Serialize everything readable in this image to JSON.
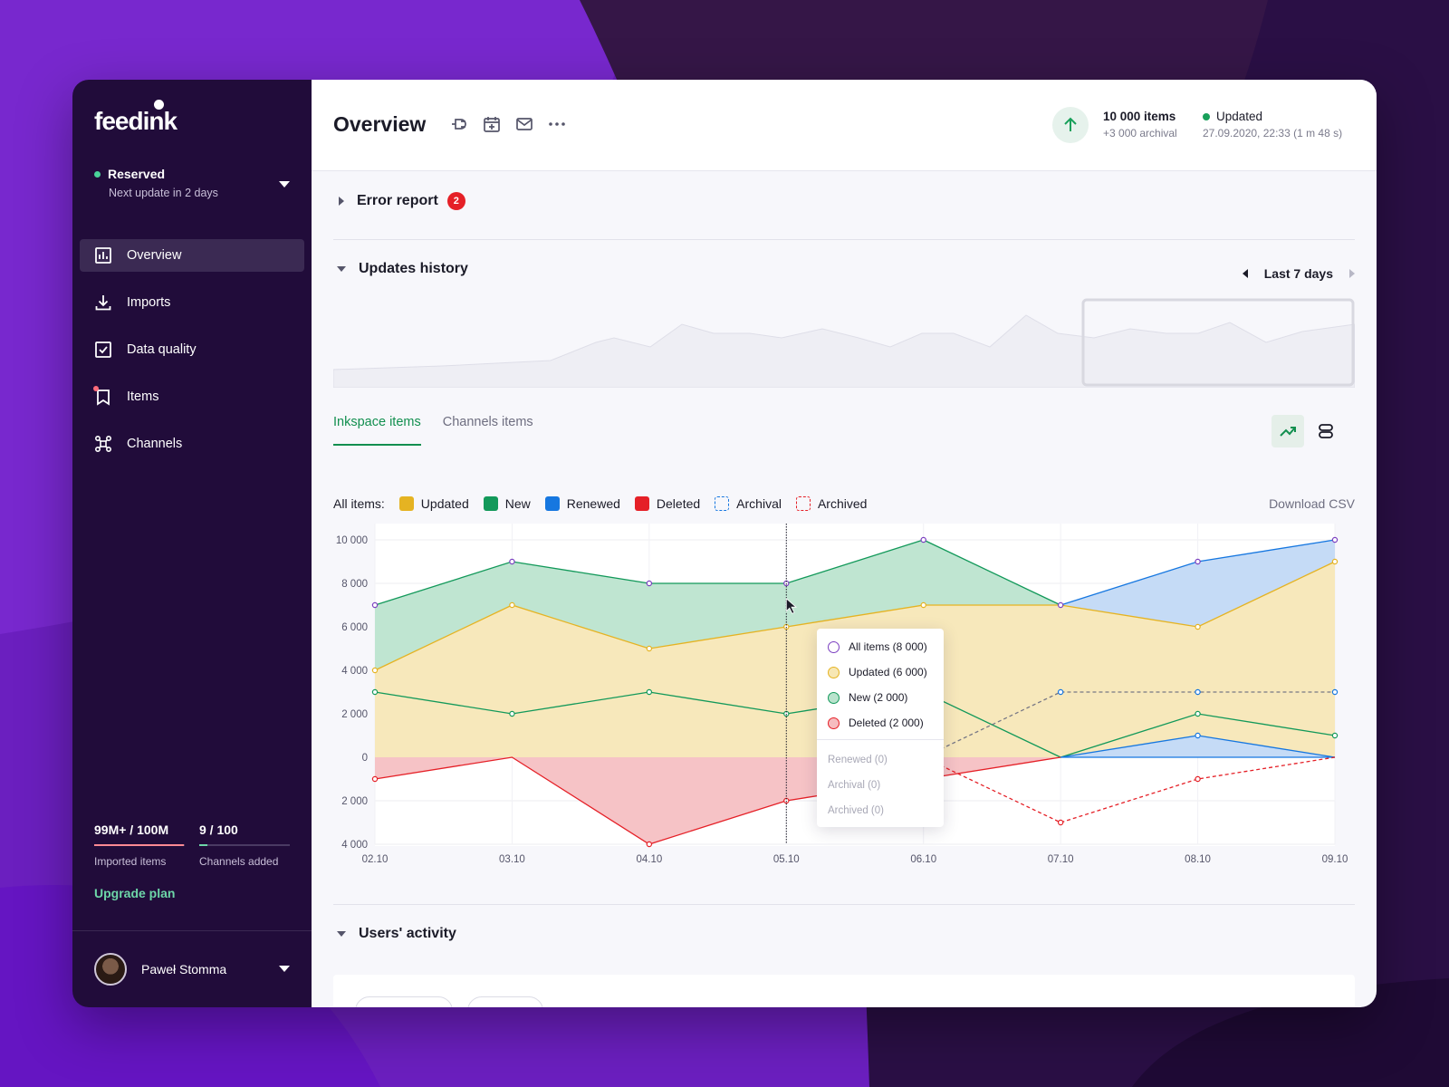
{
  "brand": {
    "logo_text": "feedink"
  },
  "sidebar": {
    "plan_status": "Reserved",
    "plan_sub": "Next update in 2 days",
    "items": [
      {
        "label": "Overview",
        "icon": "chart-bar-icon",
        "active": true
      },
      {
        "label": "Imports",
        "icon": "download-icon",
        "active": false
      },
      {
        "label": "Data quality",
        "icon": "checkbox-icon",
        "active": false
      },
      {
        "label": "Items",
        "icon": "bookmark-icon",
        "active": false
      },
      {
        "label": "Channels",
        "icon": "nodes-icon",
        "active": false
      }
    ],
    "usage": [
      {
        "value": "99M+ / 100M",
        "label": "Imported items",
        "fill": 0.99,
        "color": "#ff8a93"
      },
      {
        "value": "9 / 100",
        "label": "Channels added",
        "fill": 0.09,
        "color": "#6dd6a8"
      }
    ],
    "upgrade_label": "Upgrade plan",
    "user_name": "Paweł Stomma"
  },
  "header": {
    "title": "Overview",
    "items_count": "10 000 items",
    "items_archival": "+3 000 archival",
    "update_status": "Updated",
    "update_time": "27.09.2020, 22:33 (1 m 48 s)"
  },
  "error_report": {
    "title": "Error report",
    "count": "2"
  },
  "updates_history": {
    "title": "Updates history",
    "range_label": "Last 7 days"
  },
  "tabs": [
    {
      "label": "Inkspace items",
      "active": true
    },
    {
      "label": "Channels items",
      "active": false
    }
  ],
  "legend": {
    "prefix": "All items:",
    "items": [
      {
        "label": "Updated",
        "color": "#e5b322",
        "dashed": false
      },
      {
        "label": "New",
        "color": "#13995a",
        "dashed": false
      },
      {
        "label": "Renewed",
        "color": "#1677e0",
        "dashed": false
      },
      {
        "label": "Deleted",
        "color": "#e52027",
        "dashed": false
      },
      {
        "label": "Archival",
        "color": "#1677e0",
        "dashed": true
      },
      {
        "label": "Archived",
        "color": "#e52027",
        "dashed": true
      }
    ],
    "download_label": "Download CSV"
  },
  "tooltip": {
    "rows": [
      {
        "label": "All items (8 000)",
        "stroke": "#7b3fc0",
        "fill": "#ffffff"
      },
      {
        "label": "Updated (6 000)",
        "stroke": "#e5b322",
        "fill": "#f7e7b4"
      },
      {
        "label": "New (2 000)",
        "stroke": "#13995a",
        "fill": "#b9e3cd"
      },
      {
        "label": "Deleted (2 000)",
        "stroke": "#e52027",
        "fill": "#f6bcbf"
      }
    ],
    "muted": [
      "Renewed (0)",
      "Archival (0)",
      "Archived (0)"
    ]
  },
  "users_activity": {
    "title": "Users' activity"
  },
  "chart_data": {
    "type": "area",
    "x": [
      "02.10",
      "03.10",
      "04.10",
      "05.10",
      "06.10",
      "07.10",
      "08.10",
      "09.10"
    ],
    "y_ticks": [
      {
        "value": 10000,
        "label": "10 000"
      },
      {
        "value": 8000,
        "label": "8 000"
      },
      {
        "value": 6000,
        "label": "6 000"
      },
      {
        "value": 4000,
        "label": "4 000"
      },
      {
        "value": 2000,
        "label": "2 000"
      },
      {
        "value": 0,
        "label": "0"
      },
      {
        "value": -2000,
        "label": "2 000"
      },
      {
        "value": -4000,
        "label": "4 000"
      }
    ],
    "ylim": [
      -4000,
      10000
    ],
    "series": [
      {
        "name": "All items",
        "values": [
          7000,
          9000,
          8000,
          8000,
          10000,
          7000,
          9000,
          10000
        ]
      },
      {
        "name": "Updated",
        "values": [
          4000,
          7000,
          5000,
          6000,
          7000,
          7000,
          6000,
          9000
        ]
      },
      {
        "name": "Renewed",
        "values": [
          null,
          null,
          null,
          null,
          null,
          7000,
          7000,
          9000
        ]
      },
      {
        "name": "New",
        "values": [
          3000,
          2000,
          3000,
          2000,
          3000,
          0,
          2000,
          1000
        ]
      },
      {
        "name": "Renewed (lower)",
        "values": [
          null,
          null,
          null,
          null,
          null,
          0,
          1000,
          0
        ]
      },
      {
        "name": "Archival",
        "values": [
          null,
          null,
          null,
          null,
          0,
          3000,
          3000,
          3000
        ]
      },
      {
        "name": "Deleted",
        "values": [
          -1000,
          0,
          -4000,
          -2000,
          -1000,
          0,
          null,
          null
        ]
      },
      {
        "name": "Archived",
        "values": [
          null,
          null,
          null,
          null,
          0,
          -3000,
          -1000,
          0
        ]
      }
    ],
    "hover_index": 3
  }
}
